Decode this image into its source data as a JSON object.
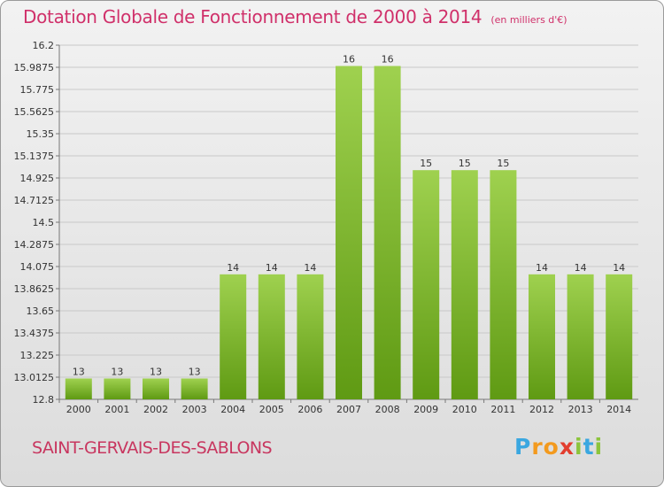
{
  "header": {
    "title": "Dotation Globale de Fonctionnement de 2000 à 2014",
    "subtitle": "(en milliers d'€)"
  },
  "footer": {
    "commune": "SAINT-GERVAIS-DES-SABLONS",
    "brand": "Proxiti",
    "brand_letters": [
      "P",
      "r",
      "o",
      "x",
      "i",
      "t",
      "i"
    ],
    "brand_colors": [
      "#3aa7e0",
      "#f39a1e",
      "#f39a1e",
      "#e23d2e",
      "#8cc43c",
      "#3aa7e0",
      "#8cc43c"
    ]
  },
  "colors": {
    "bar_light": "#9fd14f",
    "bar_dark": "#5f9a13",
    "title": "#d0306a"
  },
  "chart_data": {
    "type": "bar",
    "title": "Dotation Globale de Fonctionnement de 2000 à 2014",
    "subtitle": "(en milliers d'€)",
    "xlabel": "",
    "ylabel": "",
    "categories": [
      "2000",
      "2001",
      "2002",
      "2003",
      "2004",
      "2005",
      "2006",
      "2007",
      "2008",
      "2009",
      "2010",
      "2011",
      "2012",
      "2013",
      "2014"
    ],
    "values": [
      13,
      13,
      13,
      13,
      14,
      14,
      14,
      16,
      16,
      15,
      15,
      15,
      14,
      14,
      14
    ],
    "data_labels": [
      "13",
      "13",
      "13",
      "13",
      "14",
      "14",
      "14",
      "16",
      "16",
      "15",
      "15",
      "15",
      "14",
      "14",
      "14"
    ],
    "ylim": [
      12.8,
      16.2
    ],
    "yticks": [
      "12.8",
      "13.0125",
      "13.225",
      "13.4375",
      "13.65",
      "13.8625",
      "14.075",
      "14.2875",
      "14.5",
      "14.7125",
      "14.925",
      "15.1375",
      "15.35",
      "15.5625",
      "15.775",
      "15.9875",
      "16.2"
    ],
    "grid": true
  }
}
